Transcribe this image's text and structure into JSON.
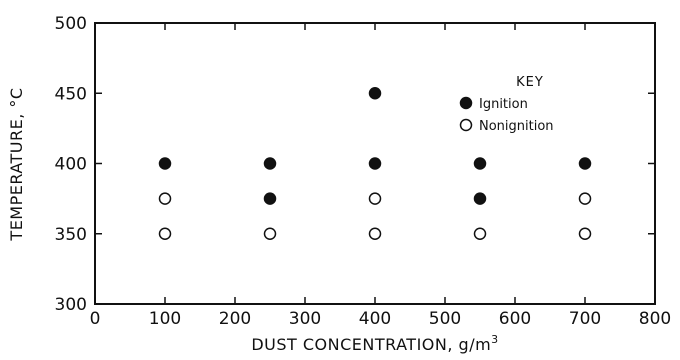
{
  "chart_data": {
    "type": "scatter",
    "title": "",
    "xlabel": "DUST CONCENTRATION, g/m",
    "xlabel_superscript": "3",
    "ylabel": "TEMPERATURE, °C",
    "xlim": [
      0,
      800
    ],
    "ylim": [
      300,
      500
    ],
    "x_ticks": [
      0,
      100,
      200,
      300,
      400,
      500,
      600,
      700,
      800
    ],
    "y_ticks": [
      300,
      350,
      400,
      450,
      500
    ],
    "grid": false,
    "legend": {
      "title": "KEY",
      "placement": "top-right-inside",
      "entries": [
        {
          "label": "Ignition",
          "marker": "filled-circle"
        },
        {
          "label": "Nonignition",
          "marker": "open-circle"
        }
      ]
    },
    "series": [
      {
        "name": "Ignition",
        "marker": "filled-circle",
        "points": [
          {
            "x": 100,
            "y": 400
          },
          {
            "x": 250,
            "y": 400
          },
          {
            "x": 250,
            "y": 375
          },
          {
            "x": 400,
            "y": 450
          },
          {
            "x": 400,
            "y": 400
          },
          {
            "x": 550,
            "y": 400
          },
          {
            "x": 550,
            "y": 375
          },
          {
            "x": 700,
            "y": 400
          }
        ]
      },
      {
        "name": "Nonignition",
        "marker": "open-circle",
        "points": [
          {
            "x": 100,
            "y": 375
          },
          {
            "x": 100,
            "y": 350
          },
          {
            "x": 250,
            "y": 350
          },
          {
            "x": 400,
            "y": 375
          },
          {
            "x": 400,
            "y": 350
          },
          {
            "x": 550,
            "y": 350
          },
          {
            "x": 700,
            "y": 375
          },
          {
            "x": 700,
            "y": 350
          }
        ]
      }
    ]
  }
}
